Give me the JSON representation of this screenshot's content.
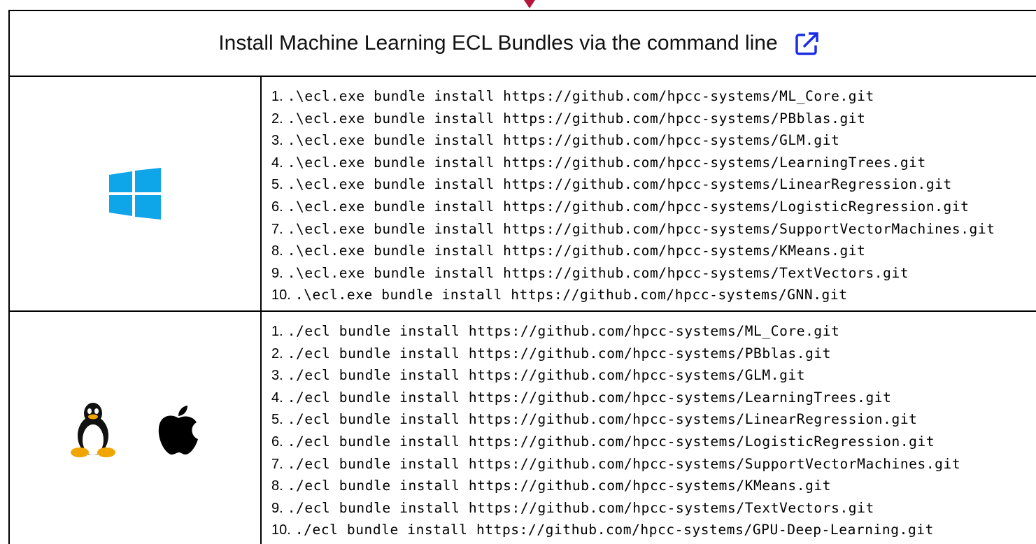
{
  "header": {
    "title": "Install Machine Learning ECL Bundles via the command line"
  },
  "rows": [
    {
      "lines": [
        {
          "number": "1.",
          "command": ".\\ecl.exe bundle install https://github.com/hpcc-systems/ML_Core.git"
        },
        {
          "number": "2.",
          "command": ".\\ecl.exe bundle install https://github.com/hpcc-systems/PBblas.git"
        },
        {
          "number": "3.",
          "command": ".\\ecl.exe bundle install https://github.com/hpcc-systems/GLM.git"
        },
        {
          "number": "4.",
          "command": ".\\ecl.exe bundle install https://github.com/hpcc-systems/LearningTrees.git"
        },
        {
          "number": "5.",
          "command": ".\\ecl.exe bundle install https://github.com/hpcc-systems/LinearRegression.git"
        },
        {
          "number": "6.",
          "command": ".\\ecl.exe bundle install https://github.com/hpcc-systems/LogisticRegression.git"
        },
        {
          "number": "7.",
          "command": ".\\ecl.exe bundle install https://github.com/hpcc-systems/SupportVectorMachines.git"
        },
        {
          "number": "8.",
          "command": ".\\ecl.exe bundle install https://github.com/hpcc-systems/KMeans.git"
        },
        {
          "number": "9.",
          "command": ".\\ecl.exe bundle install https://github.com/hpcc-systems/TextVectors.git"
        },
        {
          "number": "10.",
          "command": ".\\ecl.exe bundle install https://github.com/hpcc-systems/GNN.git"
        }
      ]
    },
    {
      "lines": [
        {
          "number": "1.",
          "command": "./ecl bundle install https://github.com/hpcc-systems/ML_Core.git"
        },
        {
          "number": "2.",
          "command": "./ecl bundle install https://github.com/hpcc-systems/PBblas.git"
        },
        {
          "number": "3.",
          "command": "./ecl bundle install https://github.com/hpcc-systems/GLM.git"
        },
        {
          "number": "4.",
          "command": "./ecl bundle install https://github.com/hpcc-systems/LearningTrees.git"
        },
        {
          "number": "5.",
          "command": "./ecl bundle install https://github.com/hpcc-systems/LinearRegression.git"
        },
        {
          "number": "6.",
          "command": "./ecl bundle install https://github.com/hpcc-systems/LogisticRegression.git"
        },
        {
          "number": "7.",
          "command": "./ecl bundle install https://github.com/hpcc-systems/SupportVectorMachines.git"
        },
        {
          "number": "8.",
          "command": "./ecl bundle install https://github.com/hpcc-systems/KMeans.git"
        },
        {
          "number": "9.",
          "command": "./ecl bundle install https://github.com/hpcc-systems/TextVectors.git"
        },
        {
          "number": "10.",
          "command": "./ecl bundle install https://github.com/hpcc-systems/GPU-Deep-Learning.git"
        }
      ]
    }
  ]
}
